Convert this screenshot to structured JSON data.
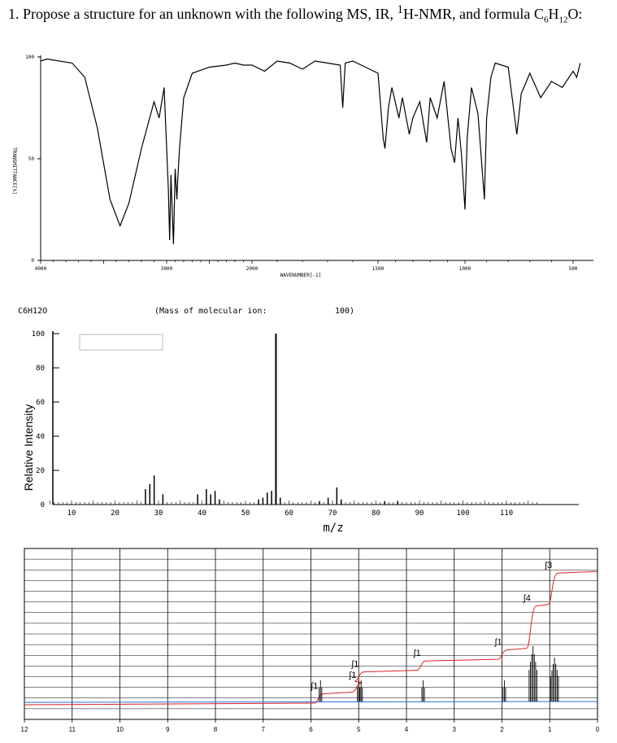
{
  "question": {
    "prefix": "1. Propose a structure for an unknown with the following MS, IR, ",
    "sup": "1",
    "mid": "H-NMR, and formula C",
    "c_count": "6",
    "h_letter": "H",
    "h_count": "12",
    "o_letter": "O:"
  },
  "chart_data": [
    {
      "type": "line",
      "name": "IR",
      "xlabel": "WAVENUMBER[-1]",
      "ylabel": "TRANSMITTANCE[%]",
      "x_ticks": [
        "4000",
        "3000",
        "2000",
        "1500",
        "1000",
        "500"
      ],
      "y_ticks": [
        "100",
        "50",
        "0"
      ],
      "xlim": [
        4000,
        450
      ],
      "ylim": [
        0,
        100
      ],
      "x_scale": "piecewise-linear, expanded below 2000",
      "points": [
        [
          4000,
          98
        ],
        [
          3950,
          99
        ],
        [
          3750,
          97
        ],
        [
          3650,
          90
        ],
        [
          3550,
          65
        ],
        [
          3450,
          30
        ],
        [
          3370,
          17
        ],
        [
          3300,
          28
        ],
        [
          3200,
          55
        ],
        [
          3100,
          78
        ],
        [
          3060,
          70
        ],
        [
          3020,
          85
        ],
        [
          2980,
          35
        ],
        [
          2965,
          10
        ],
        [
          2950,
          42
        ],
        [
          2935,
          25
        ],
        [
          2920,
          8
        ],
        [
          2900,
          45
        ],
        [
          2880,
          30
        ],
        [
          2870,
          40
        ],
        [
          2850,
          55
        ],
        [
          2800,
          80
        ],
        [
          2700,
          92
        ],
        [
          2500,
          95
        ],
        [
          2300,
          96
        ],
        [
          2200,
          97
        ],
        [
          2100,
          96
        ],
        [
          2000,
          96
        ],
        [
          1950,
          93
        ],
        [
          1900,
          98
        ],
        [
          1850,
          97
        ],
        [
          1800,
          94
        ],
        [
          1750,
          98
        ],
        [
          1700,
          97
        ],
        [
          1650,
          96
        ],
        [
          1640,
          75
        ],
        [
          1630,
          97
        ],
        [
          1600,
          98
        ],
        [
          1500,
          92
        ],
        [
          1470,
          60
        ],
        [
          1460,
          55
        ],
        [
          1440,
          75
        ],
        [
          1420,
          85
        ],
        [
          1380,
          70
        ],
        [
          1360,
          80
        ],
        [
          1320,
          62
        ],
        [
          1300,
          70
        ],
        [
          1260,
          78
        ],
        [
          1220,
          58
        ],
        [
          1200,
          80
        ],
        [
          1160,
          70
        ],
        [
          1120,
          88
        ],
        [
          1080,
          55
        ],
        [
          1060,
          48
        ],
        [
          1040,
          70
        ],
        [
          1020,
          52
        ],
        [
          1000,
          25
        ],
        [
          990,
          60
        ],
        [
          970,
          85
        ],
        [
          940,
          72
        ],
        [
          910,
          30
        ],
        [
          900,
          70
        ],
        [
          880,
          90
        ],
        [
          860,
          97
        ],
        [
          800,
          95
        ],
        [
          760,
          62
        ],
        [
          740,
          82
        ],
        [
          700,
          92
        ],
        [
          650,
          80
        ],
        [
          600,
          88
        ],
        [
          550,
          85
        ],
        [
          500,
          93
        ],
        [
          480,
          90
        ],
        [
          460,
          97
        ]
      ]
    },
    {
      "type": "bar",
      "name": "MS",
      "header_left": "C6H12O",
      "header_mid": "(Mass of molecular ion:",
      "header_right": "100)",
      "xlabel": "m/z",
      "ylabel": "Relative Intensity",
      "x_ticks": [
        "10",
        "20",
        "30",
        "40",
        "50",
        "60",
        "70",
        "80",
        "90",
        "100",
        "110"
      ],
      "y_ticks": [
        "0",
        "20",
        "40",
        "60",
        "80",
        "100"
      ],
      "xlim": [
        5,
        117
      ],
      "ylim": [
        0,
        100
      ],
      "peaks": [
        [
          27,
          9
        ],
        [
          28,
          12
        ],
        [
          29,
          17
        ],
        [
          31,
          6
        ],
        [
          39,
          6
        ],
        [
          41,
          9
        ],
        [
          42,
          6
        ],
        [
          43,
          8
        ],
        [
          44,
          3
        ],
        [
          53,
          3
        ],
        [
          54,
          4
        ],
        [
          55,
          7
        ],
        [
          56,
          8
        ],
        [
          57,
          100
        ],
        [
          58,
          4
        ],
        [
          67,
          2
        ],
        [
          69,
          4
        ],
        [
          71,
          10
        ],
        [
          72,
          3
        ],
        [
          82,
          2
        ],
        [
          85,
          2
        ]
      ]
    },
    {
      "type": "line",
      "name": "1H-NMR",
      "xlim": [
        12,
        0
      ],
      "x_ticks": [
        "12",
        "11",
        "10",
        "9",
        "8",
        "7",
        "6",
        "5",
        "4",
        "3",
        "2",
        "1",
        "0"
      ],
      "integrals": [
        "∫1",
        "∫1",
        "∫1",
        "∫1",
        "∫1",
        "∫4",
        "∫3"
      ],
      "peaks": [
        [
          5.8,
          1
        ],
        [
          5.0,
          1
        ],
        [
          4.95,
          1
        ],
        [
          3.65,
          1
        ],
        [
          1.95,
          1
        ],
        [
          1.35,
          4
        ],
        [
          0.9,
          3
        ]
      ]
    }
  ]
}
